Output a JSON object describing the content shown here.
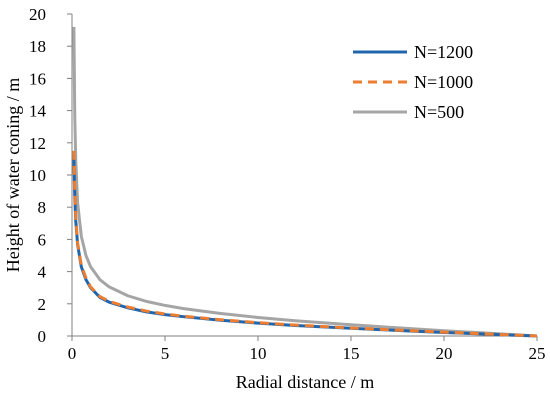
{
  "chart_data": {
    "type": "line",
    "title": "",
    "xlabel": "Radial distance / m",
    "ylabel": "Height of water coning / m",
    "xlim": [
      0,
      25
    ],
    "ylim": [
      0,
      20
    ],
    "xticks": [
      0,
      5,
      10,
      15,
      20,
      25
    ],
    "yticks": [
      0,
      2,
      4,
      6,
      8,
      10,
      12,
      14,
      16,
      18,
      20
    ],
    "grid": false,
    "legend_position": "top-right",
    "x": [
      0.1,
      0.15,
      0.2,
      0.3,
      0.5,
      0.75,
      1,
      1.5,
      2,
      3,
      4,
      5,
      6,
      8,
      10,
      12,
      15,
      18,
      20,
      22,
      24,
      25
    ],
    "series": [
      {
        "name": "N=1200",
        "color": "#2166ac",
        "dash": "solid",
        "values": [
          11.0,
          8.6,
          7.2,
          5.7,
          4.3,
          3.5,
          3.0,
          2.4,
          2.1,
          1.75,
          1.5,
          1.33,
          1.2,
          0.98,
          0.8,
          0.65,
          0.48,
          0.32,
          0.22,
          0.13,
          0.04,
          0.0
        ]
      },
      {
        "name": "N=1000",
        "color": "#ed7d31",
        "dash": "dashed",
        "values": [
          11.5,
          8.9,
          7.4,
          5.8,
          4.4,
          3.6,
          3.05,
          2.45,
          2.15,
          1.8,
          1.55,
          1.37,
          1.23,
          1.01,
          0.83,
          0.68,
          0.5,
          0.34,
          0.24,
          0.14,
          0.05,
          0.0
        ]
      },
      {
        "name": "N=500",
        "color": "#a5a5a5",
        "dash": "solid",
        "values": [
          19.2,
          13.6,
          11.0,
          8.3,
          6.2,
          5.0,
          4.3,
          3.5,
          3.05,
          2.5,
          2.15,
          1.9,
          1.7,
          1.4,
          1.15,
          0.95,
          0.7,
          0.47,
          0.33,
          0.2,
          0.07,
          0.0
        ]
      }
    ]
  }
}
